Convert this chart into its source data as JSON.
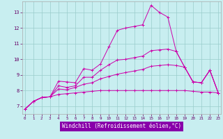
{
  "xlabel": "Windchill (Refroidissement éolien,°C)",
  "bg_color": "#c8eef0",
  "line_color": "#cc00aa",
  "grid_color": "#99cccc",
  "xlabel_bg": "#8800aa",
  "xlabel_fg": "#ffffff",
  "x_ticks": [
    0,
    1,
    2,
    3,
    4,
    5,
    6,
    7,
    8,
    9,
    10,
    11,
    12,
    13,
    14,
    15,
    16,
    17,
    18,
    19,
    20,
    21,
    22,
    23
  ],
  "y_ticks": [
    7,
    8,
    9,
    10,
    11,
    12,
    13
  ],
  "ylim": [
    6.5,
    13.7
  ],
  "xlim": [
    -0.3,
    23.3
  ],
  "lines": [
    [
      6.8,
      7.3,
      7.55,
      7.6,
      8.6,
      8.55,
      8.5,
      9.4,
      9.3,
      9.7,
      10.8,
      11.85,
      12.0,
      12.1,
      12.2,
      13.45,
      13.0,
      12.7,
      10.5,
      9.5,
      8.55,
      8.5,
      9.3,
      7.85
    ],
    [
      6.8,
      7.3,
      7.55,
      7.6,
      8.3,
      8.2,
      8.3,
      8.85,
      8.85,
      9.3,
      9.65,
      9.95,
      10.0,
      10.1,
      10.2,
      10.55,
      10.6,
      10.65,
      10.5,
      9.5,
      8.55,
      8.5,
      9.3,
      7.85
    ],
    [
      6.8,
      7.3,
      7.55,
      7.6,
      8.1,
      8.05,
      8.2,
      8.4,
      8.5,
      8.75,
      8.9,
      9.05,
      9.15,
      9.25,
      9.35,
      9.55,
      9.6,
      9.65,
      9.6,
      9.5,
      8.55,
      8.5,
      9.3,
      7.85
    ],
    [
      6.8,
      7.3,
      7.55,
      7.6,
      7.75,
      7.8,
      7.85,
      7.9,
      7.95,
      8.0,
      8.0,
      8.0,
      8.0,
      8.0,
      8.0,
      8.0,
      8.0,
      8.0,
      8.0,
      8.0,
      7.95,
      7.9,
      7.9,
      7.85
    ]
  ]
}
